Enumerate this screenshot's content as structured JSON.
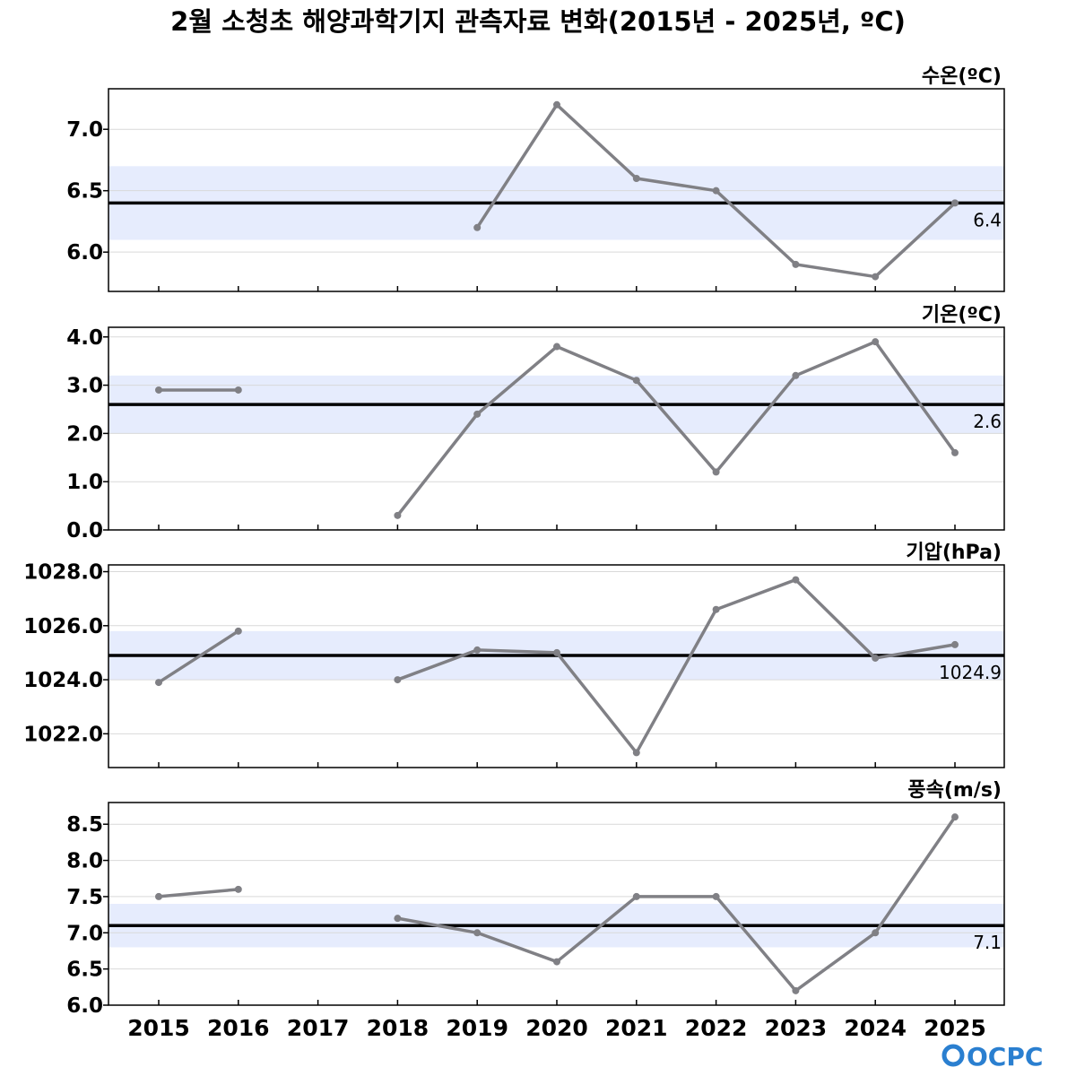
{
  "title": "2월 소청초 해양과학기지 관측자료 변화(2015년 - 2025년, ºC)",
  "logo": "OCPC",
  "colors": {
    "line": "#808085",
    "reference": "#000000",
    "band": "#e6ecfd",
    "grid": "#d9d9d9"
  },
  "chart_data": [
    {
      "type": "line",
      "label": "수온(ºC)",
      "x": [
        2015,
        2016,
        2017,
        2018,
        2019,
        2020,
        2021,
        2022,
        2023,
        2024,
        2025
      ],
      "series": [
        {
          "values": [
            null,
            null,
            null,
            null,
            6.2,
            7.2,
            6.6,
            6.5,
            5.9,
            5.8,
            6.4
          ]
        }
      ],
      "reference": {
        "value": 6.4,
        "label": "6.4"
      },
      "band": [
        6.1,
        6.7
      ],
      "ylim": [
        5.68,
        7.33
      ],
      "yticks": [
        6.0,
        6.5,
        7.0
      ],
      "ytick_labels": [
        "6.0",
        "6.5",
        "7.0"
      ]
    },
    {
      "type": "line",
      "label": "기온(ºC)",
      "x": [
        2015,
        2016,
        2017,
        2018,
        2019,
        2020,
        2021,
        2022,
        2023,
        2024,
        2025
      ],
      "series": [
        {
          "values": [
            2.9,
            2.9,
            null,
            0.3,
            2.4,
            3.8,
            3.1,
            1.2,
            3.2,
            3.9,
            1.6
          ]
        }
      ],
      "reference": {
        "value": 2.6,
        "label": "2.6"
      },
      "band": [
        2.0,
        3.2
      ],
      "ylim": [
        0.0,
        4.2
      ],
      "yticks": [
        0.0,
        1.0,
        2.0,
        3.0,
        4.0
      ],
      "ytick_labels": [
        "0.0",
        "1.0",
        "2.0",
        "3.0",
        "4.0"
      ]
    },
    {
      "type": "line",
      "label": "기압(hPa)",
      "x": [
        2015,
        2016,
        2017,
        2018,
        2019,
        2020,
        2021,
        2022,
        2023,
        2024,
        2025
      ],
      "series": [
        {
          "values": [
            1023.9,
            1025.8,
            null,
            1024.0,
            1025.1,
            1025.0,
            1021.3,
            1026.6,
            1027.7,
            1024.8,
            1025.3
          ]
        }
      ],
      "reference": {
        "value": 1024.9,
        "label": "1024.9"
      },
      "band": [
        1024.0,
        1025.8
      ],
      "ylim": [
        1020.75,
        1028.25
      ],
      "yticks": [
        1022.0,
        1024.0,
        1026.0,
        1028.0
      ],
      "ytick_labels": [
        "1022.0",
        "1024.0",
        "1026.0",
        "1028.0"
      ]
    },
    {
      "type": "line",
      "label": "풍속(m/s)",
      "x": [
        2015,
        2016,
        2017,
        2018,
        2019,
        2020,
        2021,
        2022,
        2023,
        2024,
        2025
      ],
      "series": [
        {
          "values": [
            7.5,
            7.6,
            null,
            7.2,
            7.0,
            6.6,
            7.5,
            7.5,
            6.2,
            7.0,
            8.6
          ]
        }
      ],
      "reference": {
        "value": 7.1,
        "label": "7.1"
      },
      "band": [
        6.8,
        7.4
      ],
      "ylim": [
        6.0,
        8.8
      ],
      "yticks": [
        6.0,
        6.5,
        7.0,
        7.5,
        8.0,
        8.5
      ],
      "ytick_labels": [
        "6.0",
        "6.5",
        "7.0",
        "7.5",
        "8.0",
        "8.5"
      ]
    }
  ],
  "x_tick_labels": [
    "2015",
    "2016",
    "2017",
    "2018",
    "2019",
    "2020",
    "2021",
    "2022",
    "2023",
    "2024",
    "2025"
  ]
}
